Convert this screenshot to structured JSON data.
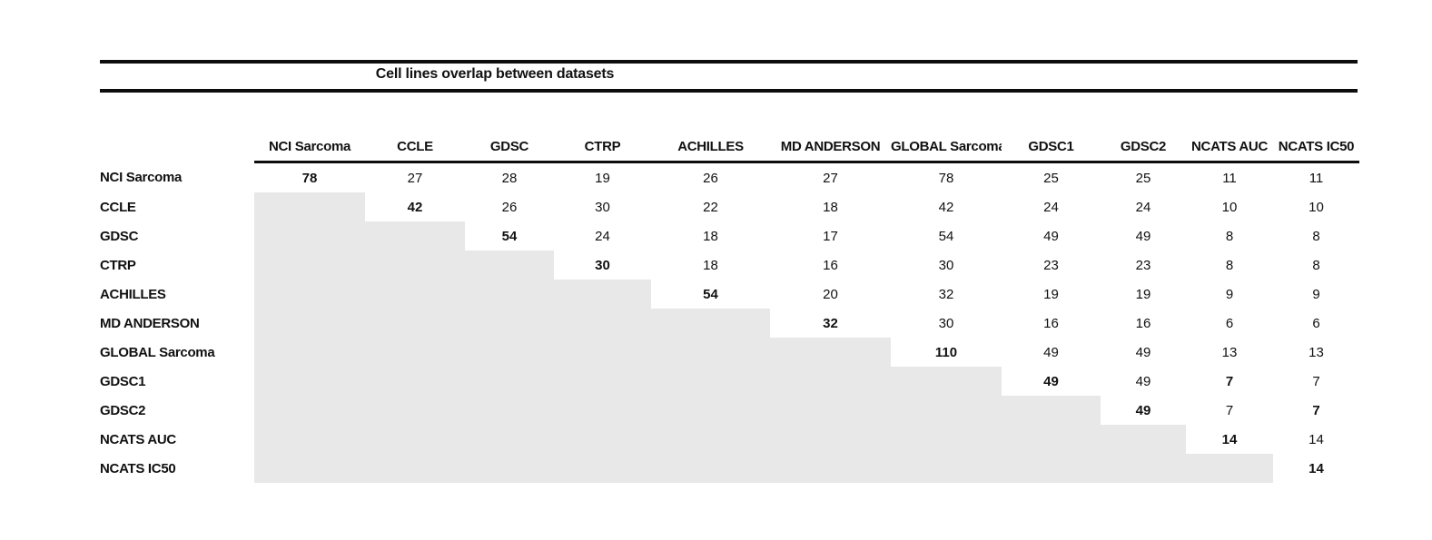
{
  "title": "Cell lines overlap between datasets",
  "colors": {
    "shaded_cell": "#e8e8e8",
    "rule": "#0d0d0d",
    "text": "#111111",
    "background": "#ffffff"
  },
  "chart_data": {
    "type": "table",
    "title": "Cell lines overlap between datasets",
    "labels": [
      "NCI Sarcoma",
      "CCLE",
      "GDSC",
      "CTRP",
      "ACHILLES",
      "MD ANDERSON",
      "GLOBAL Sarcoma",
      "GDSC1",
      "GDSC2",
      "NCATS AUC",
      "NCATS IC50"
    ],
    "matrix": [
      [
        78,
        27,
        28,
        19,
        26,
        27,
        78,
        25,
        25,
        11,
        11
      ],
      [
        null,
        42,
        26,
        30,
        22,
        18,
        42,
        24,
        24,
        10,
        10
      ],
      [
        null,
        null,
        54,
        24,
        18,
        17,
        54,
        49,
        49,
        8,
        8
      ],
      [
        null,
        null,
        null,
        30,
        18,
        16,
        30,
        23,
        23,
        8,
        8
      ],
      [
        null,
        null,
        null,
        null,
        54,
        20,
        32,
        19,
        19,
        9,
        9
      ],
      [
        null,
        null,
        null,
        null,
        null,
        32,
        30,
        16,
        16,
        6,
        6
      ],
      [
        null,
        null,
        null,
        null,
        null,
        null,
        110,
        49,
        49,
        13,
        13
      ],
      [
        null,
        null,
        null,
        null,
        null,
        null,
        null,
        49,
        49,
        7,
        7
      ],
      [
        null,
        null,
        null,
        null,
        null,
        null,
        null,
        null,
        49,
        7,
        7
      ],
      [
        null,
        null,
        null,
        null,
        null,
        null,
        null,
        null,
        null,
        14,
        14
      ],
      [
        null,
        null,
        null,
        null,
        null,
        null,
        null,
        null,
        null,
        null,
        14
      ]
    ],
    "bold_cells": [
      [
        0,
        0
      ],
      [
        1,
        1
      ],
      [
        2,
        2
      ],
      [
        3,
        3
      ],
      [
        4,
        4
      ],
      [
        5,
        5
      ],
      [
        6,
        6
      ],
      [
        7,
        7
      ],
      [
        7,
        9
      ],
      [
        8,
        8
      ],
      [
        8,
        10
      ],
      [
        9,
        9
      ],
      [
        10,
        10
      ]
    ],
    "shaded_region": "lower-triangle",
    "layout_hints": {
      "shading": "cells below the diagonal form a gray staircase",
      "rules": "double horizontal rule around title, single rule under column headers"
    }
  }
}
